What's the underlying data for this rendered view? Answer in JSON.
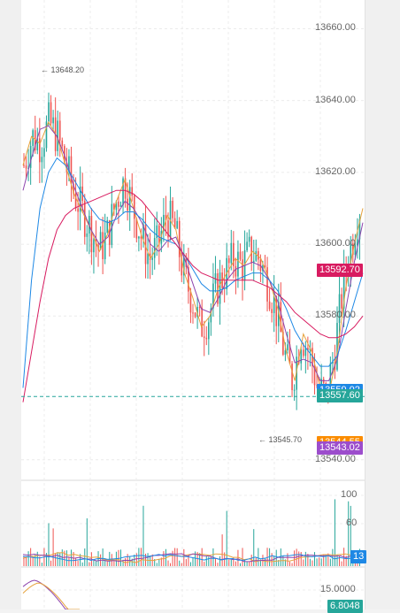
{
  "chart_data": [
    {
      "type": "candlestick",
      "panel": "price",
      "y_axis_ticks": [
        "13660.00",
        "13640.00",
        "13620.00",
        "13600.00",
        "13580.00",
        "13540.00"
      ],
      "ylim": [
        13535,
        13668
      ],
      "high_marker": "13648.20",
      "low_marker": "13545.70",
      "price_tags": [
        {
          "label": "13592.70",
          "value": 13592.7,
          "color": "#d81b60",
          "name": "ma-red-tag"
        },
        {
          "label": "13559.02",
          "value": 13559.02,
          "color": "#1e88e5",
          "name": "ma-blue-tag"
        },
        {
          "label": "13557.60",
          "value": 13557.6,
          "color": "#26a69a",
          "name": "last-price-tag"
        },
        {
          "label": "13544.55",
          "value": 13544.55,
          "color": "#fb8c00",
          "name": "ma-orange-tag"
        },
        {
          "label": "13543.02",
          "value": 13543.02,
          "color": "#9c4dcc",
          "name": "ma-purple-tag"
        }
      ],
      "last_price": 13557.6,
      "ma_lines": [
        {
          "color": "#e6a23c",
          "values": [
            13622,
            13630,
            13628,
            13634,
            13630,
            13622,
            13614,
            13609,
            13604,
            13598,
            13603,
            13612,
            13618,
            13610,
            13602,
            13596,
            13600,
            13608,
            13604,
            13592,
            13585,
            13577,
            13580,
            13588,
            13592,
            13596,
            13594,
            13598,
            13596,
            13590,
            13582,
            13570,
            13562,
            13575,
            13570,
            13560,
            13558,
            13570,
            13588,
            13600,
            13610
          ]
        },
        {
          "color": "#8e44ad",
          "values": [
            13615,
            13624,
            13632,
            13633,
            13630,
            13624,
            13616,
            13610,
            13604,
            13600,
            13602,
            13608,
            13612,
            13610,
            13606,
            13600,
            13598,
            13601,
            13602,
            13596,
            13589,
            13582,
            13581,
            13585,
            13590,
            13593,
            13594,
            13595,
            13594,
            13590,
            13584,
            13575,
            13567,
            13568,
            13567,
            13562,
            13562,
            13568,
            13582,
            13595,
            13606
          ]
        },
        {
          "color": "#1e88e5",
          "values": [
            13560,
            13590,
            13610,
            13620,
            13624,
            13622,
            13618,
            13614,
            13610,
            13607,
            13606,
            13607,
            13609,
            13609,
            13607,
            13604,
            13602,
            13601,
            13600,
            13597,
            13593,
            13589,
            13587,
            13587,
            13588,
            13590,
            13591,
            13592,
            13592,
            13590,
            13587,
            13582,
            13576,
            13572,
            13569,
            13566,
            13566,
            13569,
            13576,
            13584,
            13592
          ]
        },
        {
          "color": "#d81b60",
          "values": [
            13556,
            13570,
            13584,
            13596,
            13604,
            13608,
            13610,
            13611,
            13612,
            13613,
            13614,
            13615,
            13615,
            13614,
            13612,
            13609,
            13606,
            13603,
            13600,
            13597,
            13594,
            13592,
            13591,
            13590,
            13590,
            13590,
            13590,
            13590,
            13589,
            13588,
            13586,
            13584,
            13581,
            13579,
            13577,
            13575,
            13574,
            13574,
            13575,
            13577,
            13580
          ]
        }
      ]
    },
    {
      "type": "bar",
      "panel": "volume",
      "y_axis_ticks": [
        "100",
        "60"
      ],
      "ylim": [
        0,
        115
      ],
      "value_tag": {
        "label": "13",
        "value": 13,
        "color": "#1e88e5"
      }
    },
    {
      "type": "line",
      "panel": "indicator",
      "y_axis_ticks": [
        "15.0000"
      ],
      "value_tag": {
        "label": "6.8048",
        "color": "#26a69a"
      }
    }
  ]
}
